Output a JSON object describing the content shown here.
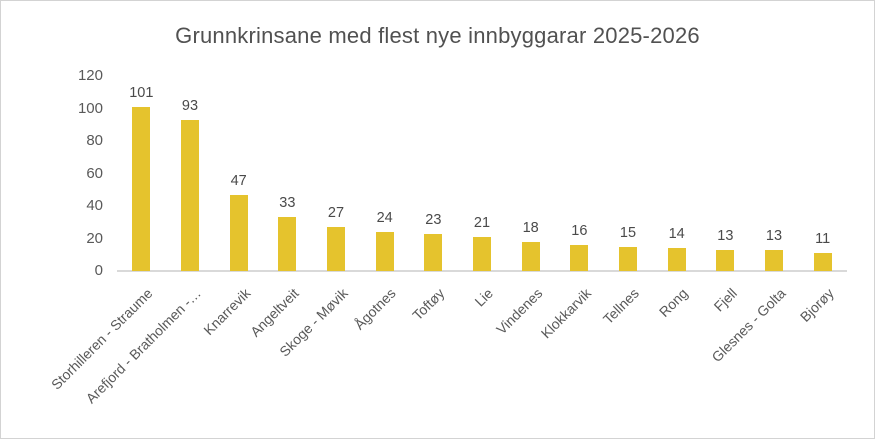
{
  "chart_data": {
    "type": "bar",
    "title": "Grunnkrinsane med flest nye innbyggarar 2025-2026",
    "categories": [
      "Storhilleren - Straume",
      "Arefjord - Bratholmen -…",
      "Knarrevik",
      "Angeltveit",
      "Skoge - Møvik",
      "Ågotnes",
      "Toftøy",
      "Lie",
      "Vindenes",
      "Klokkarvik",
      "Tellnes",
      "Rong",
      "Fjell",
      "Glesnes - Golta",
      "Bjorøy"
    ],
    "values": [
      101,
      93,
      47,
      33,
      27,
      24,
      23,
      21,
      18,
      16,
      15,
      14,
      13,
      13,
      11
    ],
    "xlabel": "",
    "ylabel": "",
    "ylim": [
      0,
      120
    ],
    "y_ticks": [
      0,
      20,
      40,
      60,
      80,
      100,
      120
    ],
    "grid": false,
    "legend": "none",
    "data_labels": true,
    "category_label_rotation_deg": 45,
    "bar_color": "#E5C32D"
  },
  "colors": {
    "bar": "#E5C32D",
    "title_text": "#515151",
    "axis_text": "#595959",
    "value_label_text": "#4A4A4A",
    "axis_line": "#D9D9D9",
    "frame_border": "#D3D3D3",
    "background": "#FFFFFF"
  }
}
